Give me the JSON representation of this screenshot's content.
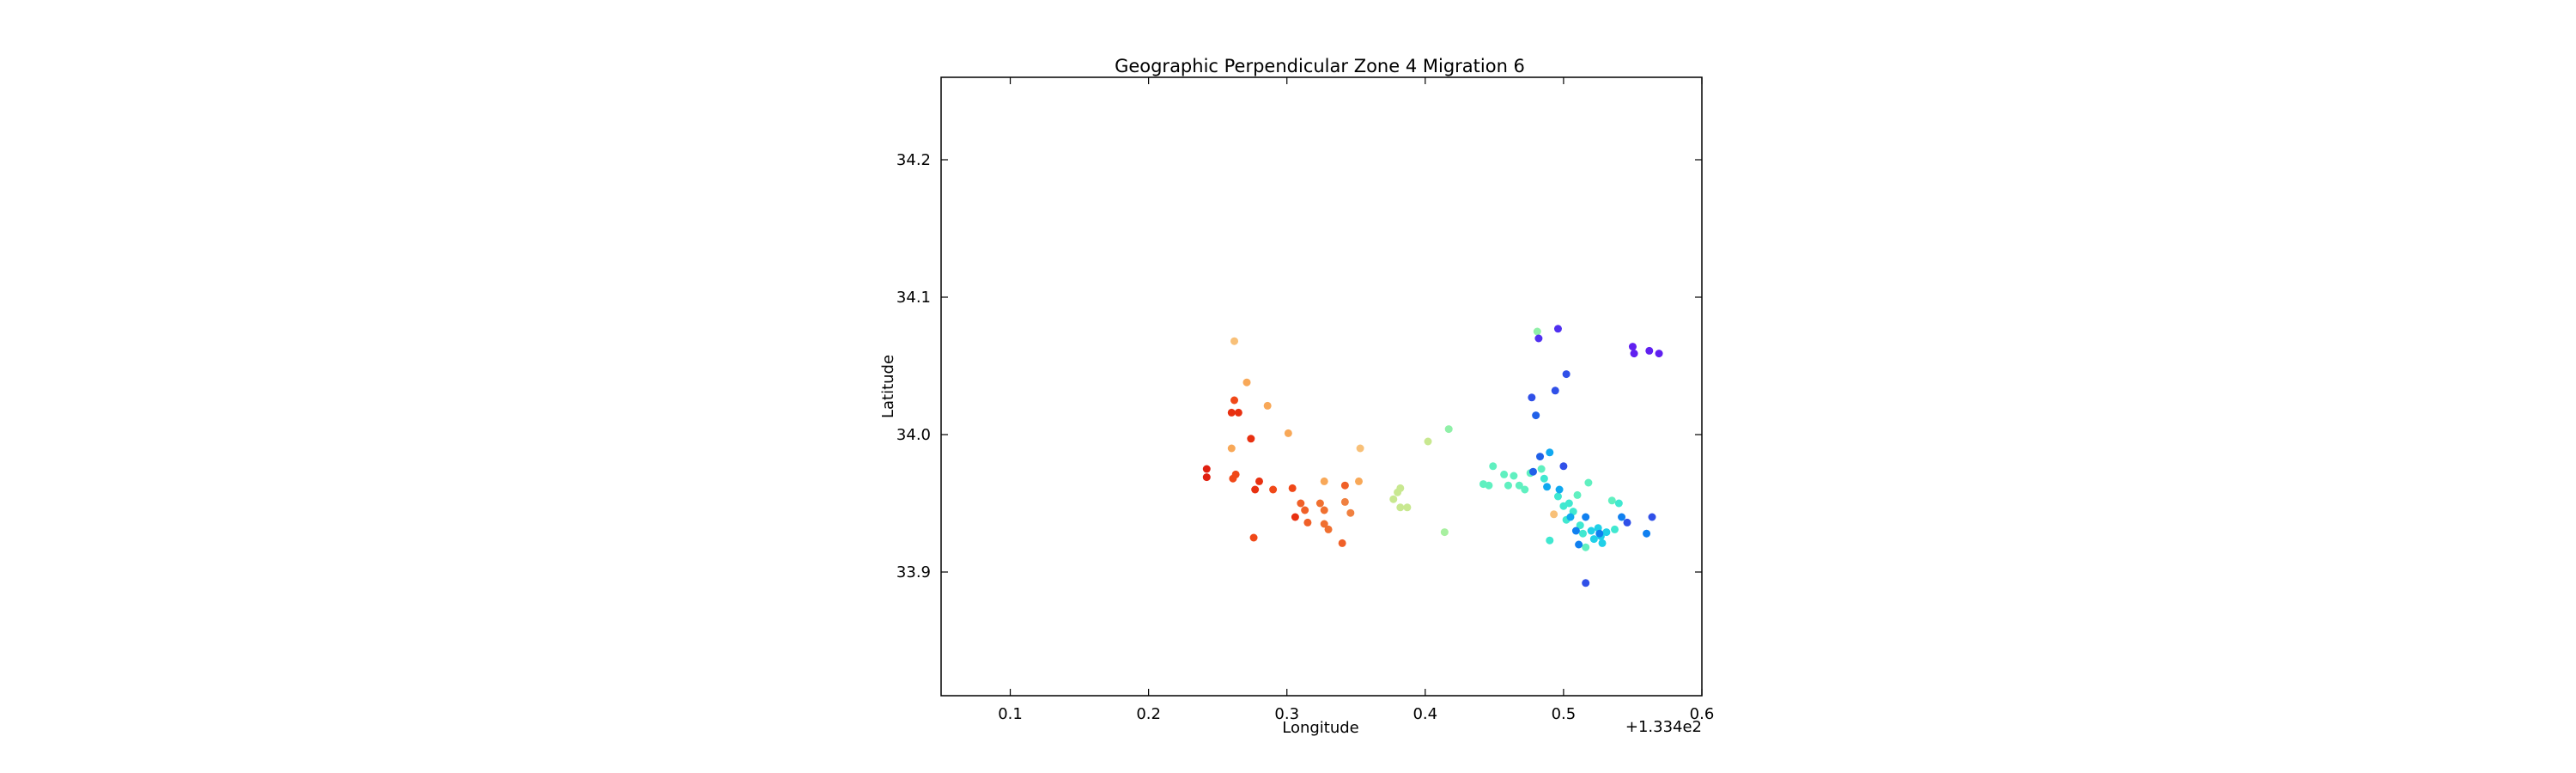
{
  "chart_data": {
    "type": "scatter",
    "title": "Geographic Perpendicular Zone 4 Migration 6",
    "xlabel": "Longitude",
    "ylabel": "Latitude",
    "x_offset_label": "+1.334e2",
    "xlim": [
      133.45,
      134.0
    ],
    "ylim": [
      33.81,
      34.26
    ],
    "x_ticks": [
      133.5,
      133.6,
      133.7,
      133.8,
      133.9,
      134.0
    ],
    "x_tick_labels": [
      "0.1",
      "0.2",
      "0.3",
      "0.4",
      "0.5",
      "0.6"
    ],
    "y_ticks": [
      33.9,
      34.0,
      34.1,
      34.2
    ],
    "y_tick_labels": [
      "33.9",
      "34.0",
      "34.1",
      "34.2"
    ],
    "grid": false,
    "colormap": "rainbow",
    "points": [
      {
        "x": 133.642,
        "y": 33.975,
        "color": "#e02010"
      },
      {
        "x": 133.642,
        "y": 33.969,
        "color": "#e02010"
      },
      {
        "x": 133.66,
        "y": 34.016,
        "color": "#e83010"
      },
      {
        "x": 133.665,
        "y": 34.016,
        "color": "#e83010"
      },
      {
        "x": 133.674,
        "y": 33.997,
        "color": "#e83010"
      },
      {
        "x": 133.677,
        "y": 33.96,
        "color": "#e83010"
      },
      {
        "x": 133.68,
        "y": 33.966,
        "color": "#e83010"
      },
      {
        "x": 133.661,
        "y": 33.968,
        "color": "#f04818"
      },
      {
        "x": 133.663,
        "y": 33.971,
        "color": "#f04818"
      },
      {
        "x": 133.662,
        "y": 34.025,
        "color": "#f04818"
      },
      {
        "x": 133.676,
        "y": 33.925,
        "color": "#f04818"
      },
      {
        "x": 133.69,
        "y": 33.96,
        "color": "#f04818"
      },
      {
        "x": 133.704,
        "y": 33.961,
        "color": "#f04818"
      },
      {
        "x": 133.706,
        "y": 33.94,
        "color": "#e83010"
      },
      {
        "x": 133.71,
        "y": 33.95,
        "color": "#f06028"
      },
      {
        "x": 133.713,
        "y": 33.945,
        "color": "#f06028"
      },
      {
        "x": 133.715,
        "y": 33.936,
        "color": "#f06028"
      },
      {
        "x": 133.724,
        "y": 33.95,
        "color": "#f07030"
      },
      {
        "x": 133.727,
        "y": 33.945,
        "color": "#f07030"
      },
      {
        "x": 133.727,
        "y": 33.935,
        "color": "#f07030"
      },
      {
        "x": 133.73,
        "y": 33.931,
        "color": "#f07030"
      },
      {
        "x": 133.74,
        "y": 33.921,
        "color": "#f06028"
      },
      {
        "x": 133.742,
        "y": 33.963,
        "color": "#f06028"
      },
      {
        "x": 133.742,
        "y": 33.951,
        "color": "#f08040"
      },
      {
        "x": 133.746,
        "y": 33.943,
        "color": "#f08040"
      },
      {
        "x": 133.66,
        "y": 33.99,
        "color": "#f8a858"
      },
      {
        "x": 133.662,
        "y": 34.068,
        "color": "#f8c078"
      },
      {
        "x": 133.671,
        "y": 34.038,
        "color": "#f8a858"
      },
      {
        "x": 133.686,
        "y": 34.021,
        "color": "#f8a858"
      },
      {
        "x": 133.701,
        "y": 34.001,
        "color": "#f8a858"
      },
      {
        "x": 133.727,
        "y": 33.966,
        "color": "#f8a858"
      },
      {
        "x": 133.752,
        "y": 33.966,
        "color": "#f8a858"
      },
      {
        "x": 133.753,
        "y": 33.99,
        "color": "#f8c078"
      },
      {
        "x": 133.777,
        "y": 33.953,
        "color": "#c8e890"
      },
      {
        "x": 133.78,
        "y": 33.958,
        "color": "#c8e890"
      },
      {
        "x": 133.782,
        "y": 33.961,
        "color": "#c8e890"
      },
      {
        "x": 133.782,
        "y": 33.947,
        "color": "#c8e890"
      },
      {
        "x": 133.787,
        "y": 33.947,
        "color": "#c8e890"
      },
      {
        "x": 133.802,
        "y": 33.995,
        "color": "#c8e890"
      },
      {
        "x": 133.814,
        "y": 33.929,
        "color": "#a8f0a0"
      },
      {
        "x": 133.817,
        "y": 34.004,
        "color": "#90f0a8"
      },
      {
        "x": 133.842,
        "y": 33.964,
        "color": "#60f0c0"
      },
      {
        "x": 133.846,
        "y": 33.963,
        "color": "#60f0c0"
      },
      {
        "x": 133.849,
        "y": 33.977,
        "color": "#60f0c0"
      },
      {
        "x": 133.857,
        "y": 33.971,
        "color": "#60f0c0"
      },
      {
        "x": 133.86,
        "y": 33.963,
        "color": "#60f0c0"
      },
      {
        "x": 133.864,
        "y": 33.97,
        "color": "#60f0c0"
      },
      {
        "x": 133.868,
        "y": 33.963,
        "color": "#60f0c0"
      },
      {
        "x": 133.872,
        "y": 33.96,
        "color": "#60f0c0"
      },
      {
        "x": 133.876,
        "y": 33.972,
        "color": "#60f0c0"
      },
      {
        "x": 133.881,
        "y": 34.075,
        "color": "#90f0a8"
      },
      {
        "x": 133.884,
        "y": 33.975,
        "color": "#60f0c0"
      },
      {
        "x": 133.886,
        "y": 33.968,
        "color": "#40e8d0"
      },
      {
        "x": 133.89,
        "y": 33.923,
        "color": "#40e8d0"
      },
      {
        "x": 133.893,
        "y": 33.942,
        "color": "#f8c078"
      },
      {
        "x": 133.896,
        "y": 33.955,
        "color": "#40e8d0"
      },
      {
        "x": 133.9,
        "y": 33.948,
        "color": "#40e8d0"
      },
      {
        "x": 133.902,
        "y": 33.938,
        "color": "#40e8d0"
      },
      {
        "x": 133.904,
        "y": 33.95,
        "color": "#40e8d0"
      },
      {
        "x": 133.907,
        "y": 33.944,
        "color": "#40e8d0"
      },
      {
        "x": 133.91,
        "y": 33.956,
        "color": "#60f0c0"
      },
      {
        "x": 133.912,
        "y": 33.934,
        "color": "#40e8d0"
      },
      {
        "x": 133.914,
        "y": 33.928,
        "color": "#40e8d0"
      },
      {
        "x": 133.916,
        "y": 33.918,
        "color": "#60f0c0"
      },
      {
        "x": 133.918,
        "y": 33.965,
        "color": "#60f0c0"
      },
      {
        "x": 133.92,
        "y": 33.93,
        "color": "#20d0e8"
      },
      {
        "x": 133.922,
        "y": 33.924,
        "color": "#20d0e8"
      },
      {
        "x": 133.925,
        "y": 33.932,
        "color": "#20d0e8"
      },
      {
        "x": 133.927,
        "y": 33.926,
        "color": "#20d0e8"
      },
      {
        "x": 133.928,
        "y": 33.921,
        "color": "#20d0e8"
      },
      {
        "x": 133.931,
        "y": 33.929,
        "color": "#20d0e8"
      },
      {
        "x": 133.935,
        "y": 33.952,
        "color": "#60f0c0"
      },
      {
        "x": 133.937,
        "y": 33.931,
        "color": "#40e8d0"
      },
      {
        "x": 133.94,
        "y": 33.95,
        "color": "#40e8d0"
      },
      {
        "x": 133.888,
        "y": 33.962,
        "color": "#10a8f0"
      },
      {
        "x": 133.89,
        "y": 33.987,
        "color": "#10a8f0"
      },
      {
        "x": 133.897,
        "y": 33.96,
        "color": "#10a8f0"
      },
      {
        "x": 133.905,
        "y": 33.94,
        "color": "#10a8f0"
      },
      {
        "x": 133.909,
        "y": 33.93,
        "color": "#1080f0"
      },
      {
        "x": 133.911,
        "y": 33.92,
        "color": "#1080f0"
      },
      {
        "x": 133.916,
        "y": 33.94,
        "color": "#1080f0"
      },
      {
        "x": 133.926,
        "y": 33.928,
        "color": "#1080f0"
      },
      {
        "x": 133.942,
        "y": 33.94,
        "color": "#1080f0"
      },
      {
        "x": 133.96,
        "y": 33.928,
        "color": "#1080f0"
      },
      {
        "x": 133.878,
        "y": 33.973,
        "color": "#2060e8"
      },
      {
        "x": 133.883,
        "y": 33.984,
        "color": "#2060e8"
      },
      {
        "x": 133.88,
        "y": 34.014,
        "color": "#2060e8"
      },
      {
        "x": 133.877,
        "y": 34.027,
        "color": "#3050e8"
      },
      {
        "x": 133.894,
        "y": 34.032,
        "color": "#3050e8"
      },
      {
        "x": 133.902,
        "y": 34.044,
        "color": "#3050e8"
      },
      {
        "x": 133.9,
        "y": 33.977,
        "color": "#3050e8"
      },
      {
        "x": 133.916,
        "y": 33.892,
        "color": "#3050e8"
      },
      {
        "x": 133.946,
        "y": 33.936,
        "color": "#3050e8"
      },
      {
        "x": 133.964,
        "y": 33.94,
        "color": "#3050e8"
      },
      {
        "x": 133.882,
        "y": 34.07,
        "color": "#5030f0"
      },
      {
        "x": 133.896,
        "y": 34.077,
        "color": "#5030f0"
      },
      {
        "x": 133.95,
        "y": 34.064,
        "color": "#6020f0"
      },
      {
        "x": 133.951,
        "y": 34.059,
        "color": "#6020f0"
      },
      {
        "x": 133.962,
        "y": 34.061,
        "color": "#6020f0"
      },
      {
        "x": 133.969,
        "y": 34.059,
        "color": "#6020f0"
      }
    ]
  }
}
